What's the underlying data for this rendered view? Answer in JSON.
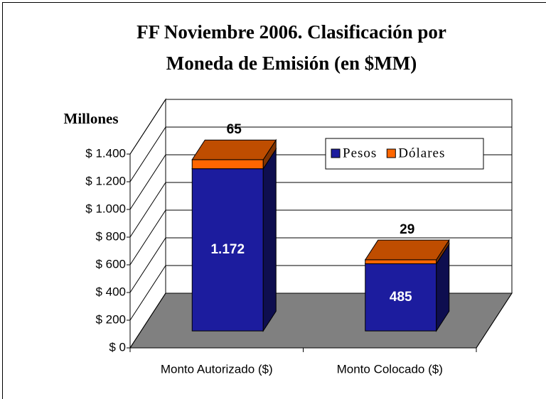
{
  "chart_data": {
    "type": "bar3d-stacked",
    "title": [
      "FF Noviembre 2006. Clasificación por",
      "Moneda de Emisión (en $MM)"
    ],
    "ylabel": "Millones",
    "categories": [
      "Monto Autorizado ($)",
      "Monto Colocado ($)"
    ],
    "series": [
      {
        "name": "Pesos",
        "color": "#1c1c9e",
        "values": [
          1172,
          485
        ],
        "value_labels": [
          "1.172",
          "485"
        ]
      },
      {
        "name": "Dólares",
        "color": "#ff6600",
        "values": [
          65,
          29
        ]
      }
    ],
    "ylim": [
      0,
      1400
    ],
    "yticks": [
      {
        "value": 0,
        "label": "$ 0"
      },
      {
        "value": 200,
        "label": "$ 200"
      },
      {
        "value": 400,
        "label": "$ 400"
      },
      {
        "value": 600,
        "label": "$ 600"
      },
      {
        "value": 800,
        "label": "$ 800"
      },
      {
        "value": 1000,
        "label": "$ 1.000"
      },
      {
        "value": 1200,
        "label": "$ 1.200"
      },
      {
        "value": 1400,
        "label": "$ 1.400"
      }
    ],
    "grid": true,
    "legend": "upper right"
  }
}
